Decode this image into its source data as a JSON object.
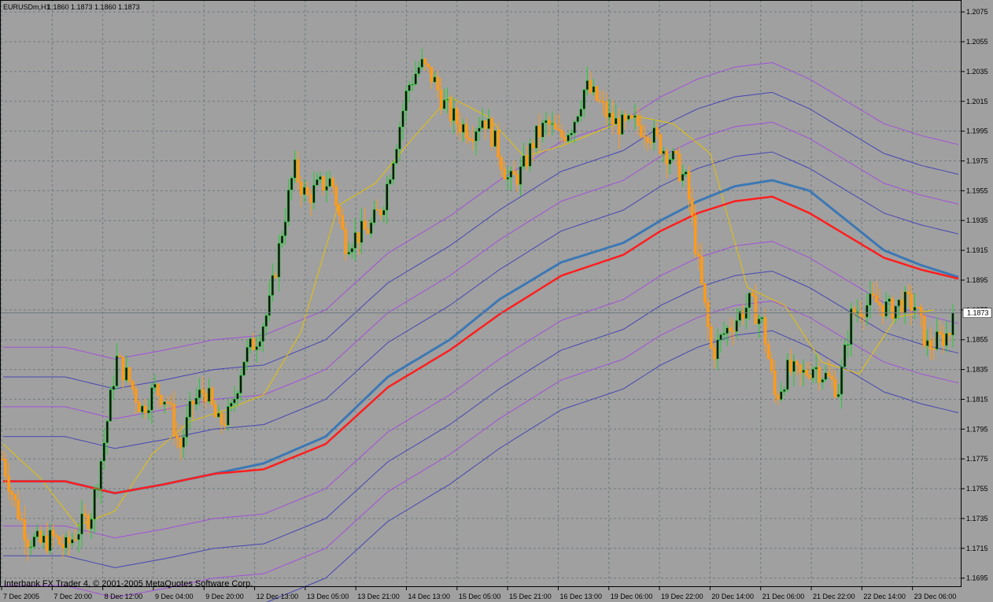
{
  "header": {
    "symbol": "EURUSDm,H1",
    "ohlc": "1.1860 1.1873 1.1860 1.1873"
  },
  "footer": {
    "copyright": "Interbank FX Trader 4, © 2001-2005 MetaQuotes Software Corp."
  },
  "current_price_label": "1.1873",
  "colors": {
    "background": "#a0a0a0",
    "grid": "#6e7a80",
    "candle_up": "#22cc33",
    "candle_down": "#ff9a1a",
    "candle_body_dark": "#111111",
    "ma_fast": "#e6c200",
    "ma_blue": "#3c78b4",
    "ma_red": "#ff1e1e",
    "envelope_violet": "#a050d8",
    "envelope_blue": "#4646b4"
  },
  "chart_data": {
    "type": "candlestick",
    "x_labels": [
      "7 Dec 2005",
      "7 Dec 20:00",
      "8 Dec 12:00",
      "9 Dec 04:00",
      "9 Dec 20:00",
      "12 Dec 13:00",
      "13 Dec 05:00",
      "13 Dec 21:00",
      "14 Dec 13:00",
      "15 Dec 05:00",
      "15 Dec 21:00",
      "16 Dec 13:00",
      "19 Dec 06:00",
      "19 Dec 22:00",
      "20 Dec 14:00",
      "21 Dec 06:00",
      "21 Dec 22:00",
      "22 Dec 14:00",
      "23 Dec 06:00"
    ],
    "y_ticks": [
      1.2075,
      1.2055,
      1.2035,
      1.2015,
      1.1995,
      1.1975,
      1.1955,
      1.1935,
      1.1915,
      1.1895,
      1.1875,
      1.1855,
      1.1835,
      1.1815,
      1.1795,
      1.1775,
      1.1755,
      1.1735,
      1.1715,
      1.1695
    ],
    "ylim": [
      1.1689,
      1.2083
    ],
    "current_price": 1.1873,
    "price_path": [
      [
        0,
        1.1775
      ],
      [
        1,
        1.1745
      ],
      [
        2,
        1.1722
      ],
      [
        3,
        1.1718
      ],
      [
        4,
        1.1722
      ],
      [
        5,
        1.1715
      ],
      [
        6,
        1.1728
      ],
      [
        7,
        1.1738
      ],
      [
        8,
        1.1785
      ],
      [
        9,
        1.1842
      ],
      [
        10,
        1.1828
      ],
      [
        11,
        1.1808
      ],
      [
        12,
        1.1822
      ],
      [
        13,
        1.1815
      ],
      [
        14,
        1.1782
      ],
      [
        15,
        1.1812
      ],
      [
        16,
        1.1822
      ],
      [
        17,
        1.1798
      ],
      [
        18,
        1.1805
      ],
      [
        19,
        1.1842
      ],
      [
        20,
        1.1855
      ],
      [
        21,
        1.1875
      ],
      [
        22,
        1.1925
      ],
      [
        23,
        1.197
      ],
      [
        24,
        1.195
      ],
      [
        25,
        1.1958
      ],
      [
        26,
        1.1962
      ],
      [
        27,
        1.192
      ],
      [
        28,
        1.1925
      ],
      [
        29,
        1.193
      ],
      [
        30,
        1.1945
      ],
      [
        31,
        1.1985
      ],
      [
        32,
        1.2025
      ],
      [
        33,
        1.204
      ],
      [
        34,
        1.203
      ],
      [
        35,
        1.201
      ],
      [
        36,
        1.2
      ],
      [
        37,
        1.1995
      ],
      [
        38,
        1.2005
      ],
      [
        39,
        1.1985
      ],
      [
        40,
        1.196
      ],
      [
        41,
        1.1968
      ],
      [
        42,
        1.199
      ],
      [
        43,
        1.2
      ],
      [
        44,
        1.199
      ],
      [
        45,
        1.2
      ],
      [
        46,
        1.2025
      ],
      [
        47,
        1.2015
      ],
      [
        48,
        1.2002
      ],
      [
        49,
        1.1998
      ],
      [
        50,
        1.2
      ],
      [
        51,
        1.1995
      ],
      [
        52,
        1.1985
      ],
      [
        53,
        1.1975
      ],
      [
        54,
        1.196
      ],
      [
        55,
        1.19
      ],
      [
        56,
        1.1845
      ],
      [
        57,
        1.186
      ],
      [
        58,
        1.187
      ],
      [
        59,
        1.188
      ],
      [
        60,
        1.1865
      ],
      [
        61,
        1.1815
      ],
      [
        62,
        1.1835
      ],
      [
        63,
        1.183
      ],
      [
        64,
        1.1838
      ],
      [
        65,
        1.183
      ],
      [
        66,
        1.1822
      ],
      [
        67,
        1.1872
      ],
      [
        68,
        1.1878
      ],
      [
        69,
        1.188
      ],
      [
        70,
        1.1875
      ],
      [
        71,
        1.188
      ],
      [
        72,
        1.1878
      ],
      [
        73,
        1.185
      ],
      [
        74,
        1.1855
      ],
      [
        75,
        1.1862
      ]
    ],
    "ma_blue": [
      [
        0,
        1.176
      ],
      [
        5,
        1.176
      ],
      [
        9,
        1.1752
      ],
      [
        13,
        1.1758
      ],
      [
        17,
        1.1765
      ],
      [
        21,
        1.1772
      ],
      [
        26,
        1.179
      ],
      [
        31,
        1.183
      ],
      [
        36,
        1.1855
      ],
      [
        40,
        1.1882
      ],
      [
        45,
        1.1907
      ],
      [
        50,
        1.192
      ],
      [
        53,
        1.1935
      ],
      [
        56,
        1.1948
      ],
      [
        59,
        1.1958
      ],
      [
        62,
        1.1962
      ],
      [
        65,
        1.1955
      ],
      [
        68,
        1.1935
      ],
      [
        71,
        1.1915
      ],
      [
        74,
        1.1905
      ],
      [
        77,
        1.1897
      ]
    ],
    "ma_red": [
      [
        0,
        1.176
      ],
      [
        5,
        1.176
      ],
      [
        9,
        1.1752
      ],
      [
        13,
        1.1758
      ],
      [
        17,
        1.1765
      ],
      [
        21,
        1.1768
      ],
      [
        26,
        1.1785
      ],
      [
        31,
        1.1823
      ],
      [
        36,
        1.1848
      ],
      [
        40,
        1.1872
      ],
      [
        45,
        1.1898
      ],
      [
        50,
        1.1912
      ],
      [
        53,
        1.1928
      ],
      [
        56,
        1.194
      ],
      [
        59,
        1.1948
      ],
      [
        62,
        1.1951
      ],
      [
        65,
        1.194
      ],
      [
        68,
        1.1925
      ],
      [
        71,
        1.191
      ],
      [
        74,
        1.1902
      ],
      [
        77,
        1.1896
      ]
    ],
    "ma_fast": [
      [
        0,
        1.1785
      ],
      [
        3,
        1.1762
      ],
      [
        6,
        1.173
      ],
      [
        9,
        1.174
      ],
      [
        12,
        1.1778
      ],
      [
        15,
        1.18
      ],
      [
        18,
        1.1808
      ],
      [
        21,
        1.1818
      ],
      [
        24,
        1.186
      ],
      [
        27,
        1.1945
      ],
      [
        30,
        1.196
      ],
      [
        33,
        1.199
      ],
      [
        36,
        1.2018
      ],
      [
        39,
        1.2005
      ],
      [
        42,
        1.1978
      ],
      [
        45,
        1.1985
      ],
      [
        48,
        1.1995
      ],
      [
        51,
        1.2005
      ],
      [
        54,
        1.2
      ],
      [
        57,
        1.198
      ],
      [
        60,
        1.189
      ],
      [
        63,
        1.1878
      ],
      [
        66,
        1.184
      ],
      [
        69,
        1.1832
      ],
      [
        72,
        1.187
      ],
      [
        75,
        1.1875
      ]
    ],
    "envelope_offsets": [
      -0.009,
      -0.007,
      -0.005,
      -0.003,
      0.003,
      0.005,
      0.007,
      0.009
    ]
  }
}
